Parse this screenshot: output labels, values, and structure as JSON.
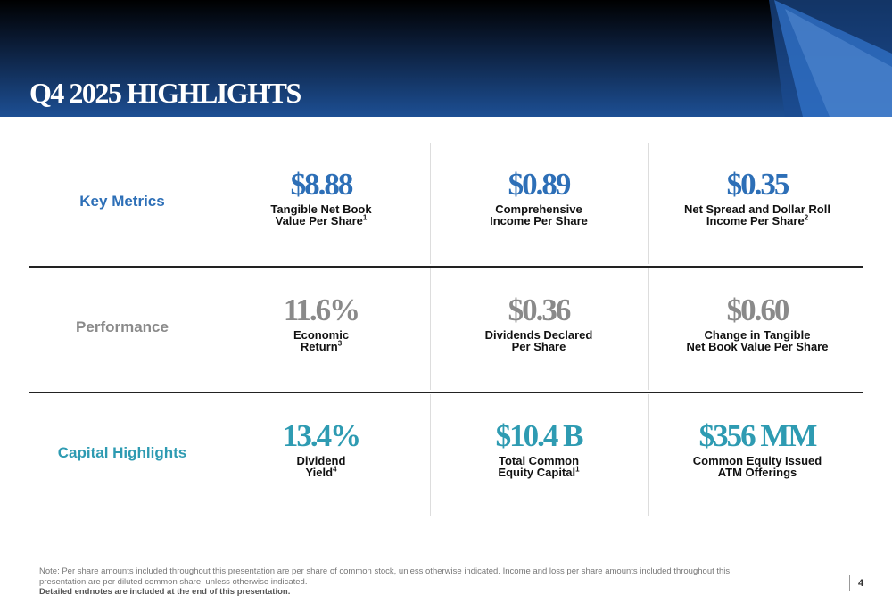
{
  "header": {
    "title": "Q4 2025 HIGHLIGHTS"
  },
  "rows": [
    {
      "label": "Key Metrics",
      "items": [
        {
          "value": "$8.88",
          "caption": [
            "Tangible Net Book",
            "Value Per Share"
          ],
          "note": "1"
        },
        {
          "value": "$0.89",
          "caption": [
            "Comprehensive",
            "Income Per Share"
          ]
        },
        {
          "value": "$0.35",
          "caption": [
            "Net Spread and Dollar Roll",
            "Income Per Share"
          ],
          "note": "2"
        }
      ]
    },
    {
      "label": "Performance",
      "items": [
        {
          "value": "11.6%",
          "caption": [
            "Economic",
            "Return"
          ],
          "note": "3"
        },
        {
          "value": "$0.36",
          "caption": [
            "Dividends Declared",
            "Per Share"
          ]
        },
        {
          "value": "$0.60",
          "caption": [
            "Change in Tangible",
            "Net Book Value Per Share"
          ]
        }
      ]
    },
    {
      "label": "Capital Highlights",
      "items": [
        {
          "value": "13.4%",
          "caption": [
            "Dividend",
            "Yield"
          ],
          "note": "4"
        },
        {
          "value": "$10.4 B",
          "caption": [
            "Total Common",
            "Equity Capital"
          ],
          "note": "1"
        },
        {
          "value": "$356 MM",
          "caption": [
            "Common Equity Issued",
            "ATM Offerings"
          ]
        }
      ]
    }
  ],
  "footer": {
    "note_lines": [
      "Note:  Per share amounts included throughout this presentation are per share of common stock, unless otherwise indicated. Income and loss per share amounts included throughout this",
      "presentation are per diluted common share, unless otherwise indicated."
    ],
    "bold": "Detailed endnotes are included at the end of this presentation.",
    "page": "4"
  }
}
